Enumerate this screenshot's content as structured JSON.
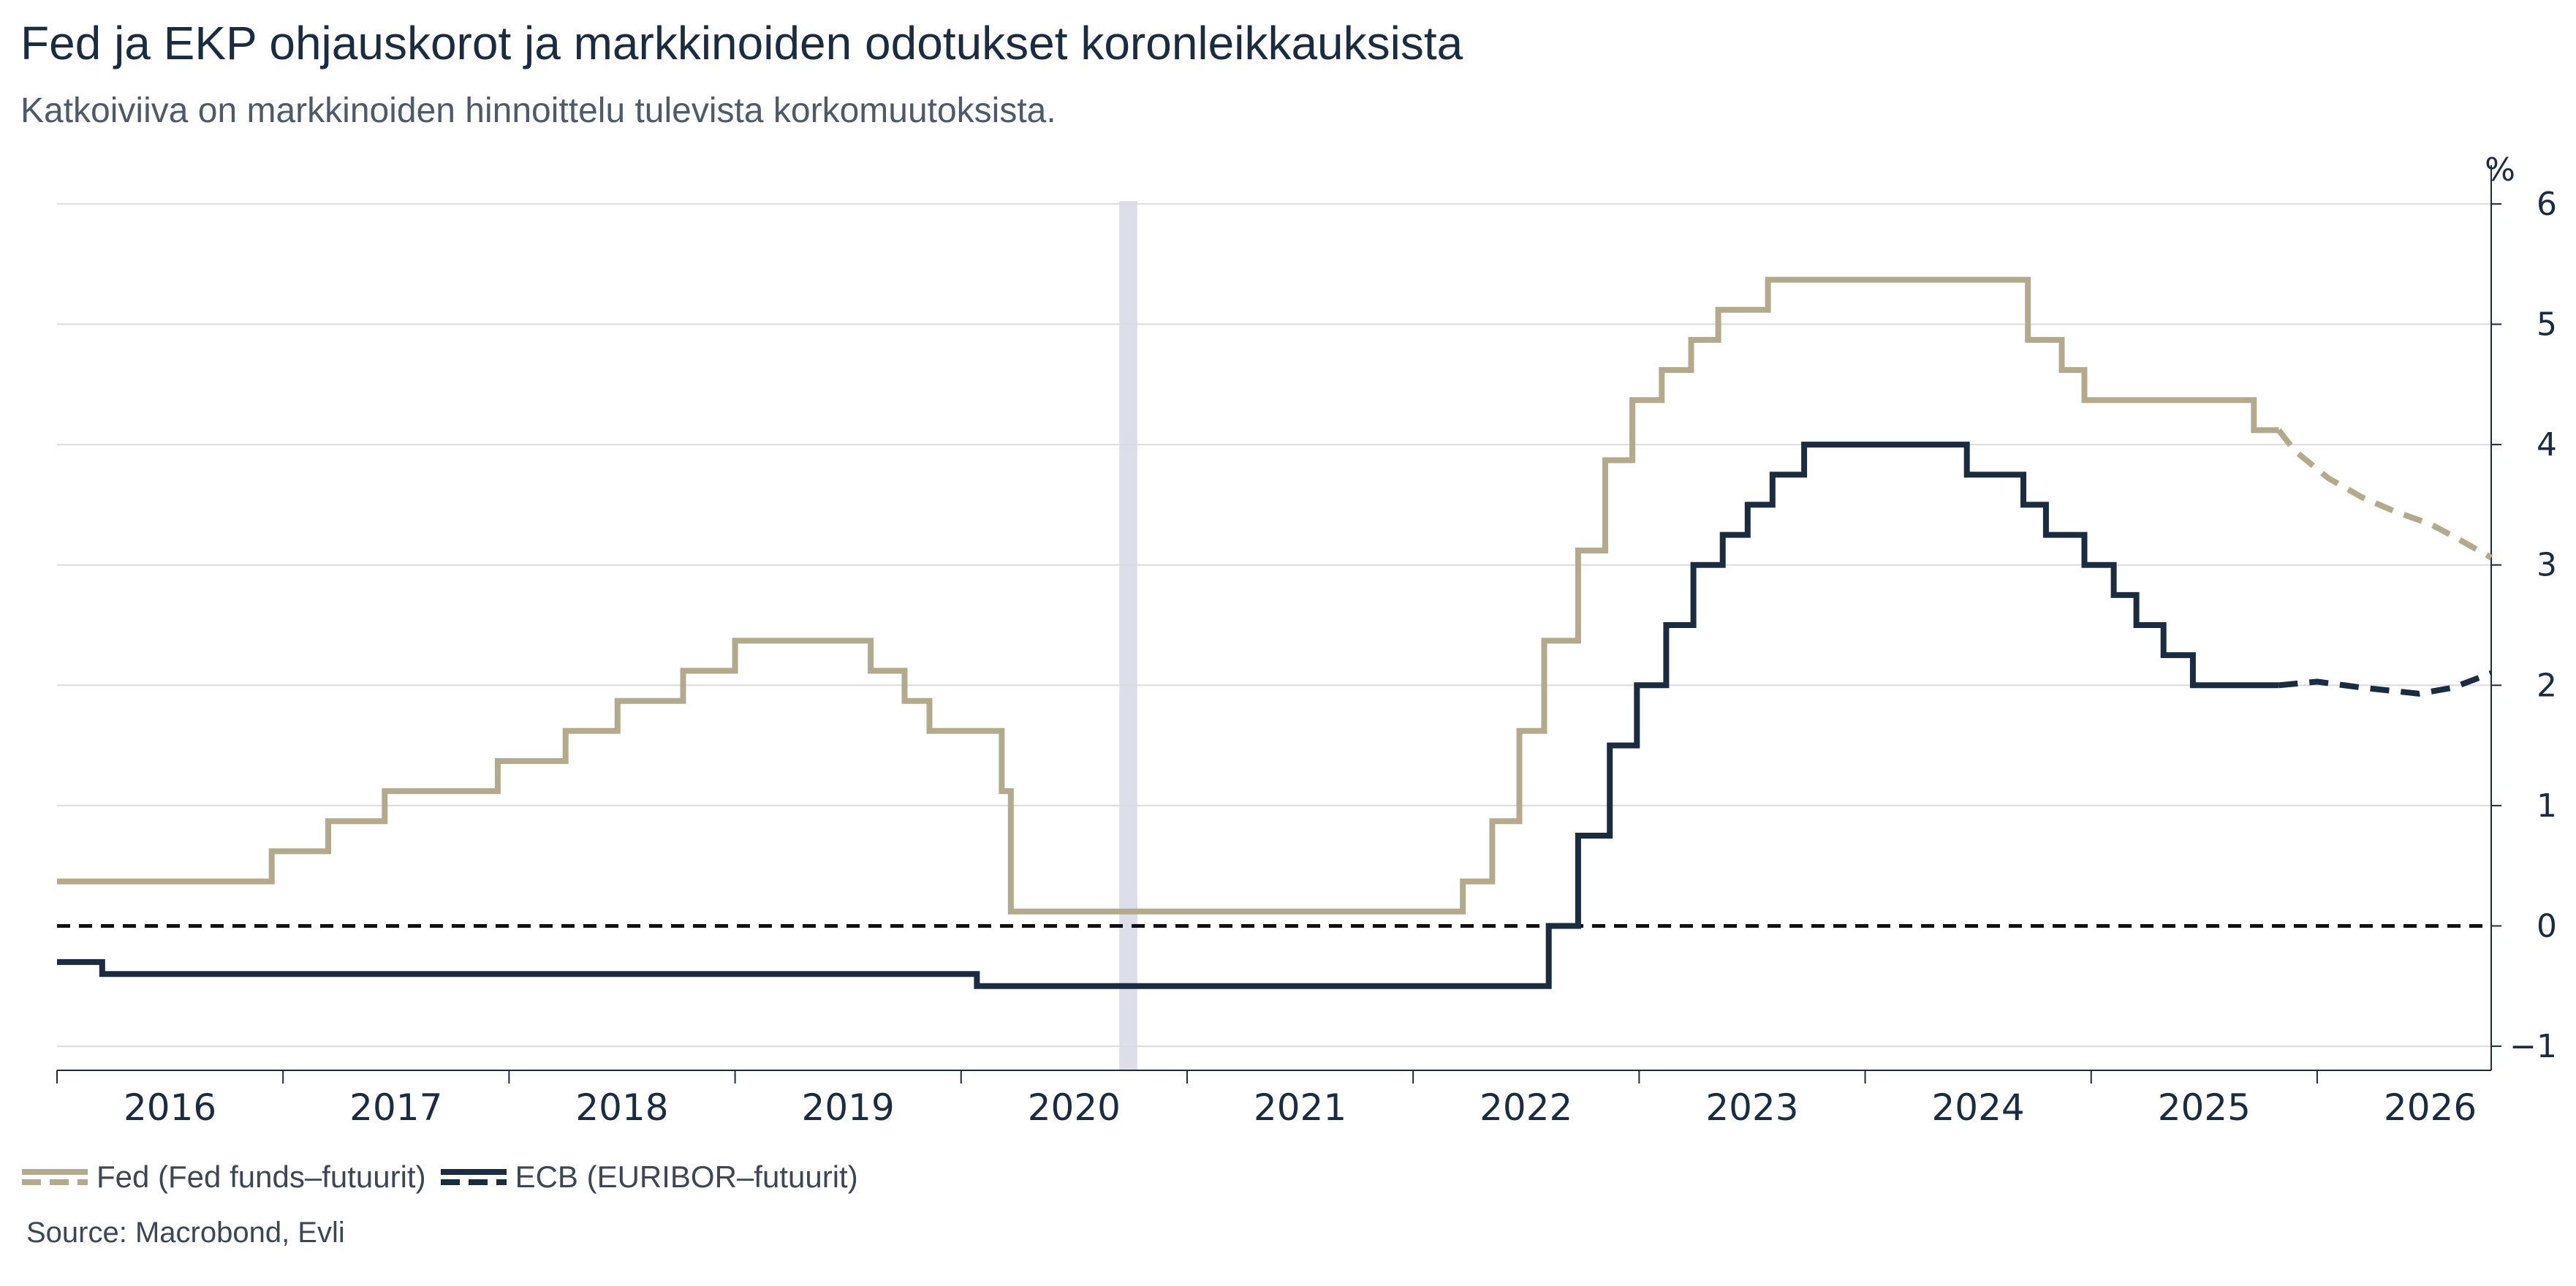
{
  "title": "Fed ja EKP ohjauskorot ja markkinoiden odotukset koronleikkauksista",
  "subtitle": "Katkoiviiva on markkinoiden hinnoittelu tulevista korkomuutoksista.",
  "source": "Source: Macrobond, Evli",
  "chart_data": {
    "type": "line",
    "title": "Fed ja EKP ohjauskorot ja markkinoiden odotukset koronleikkauksista",
    "subtitle": "Katkoiviiva on markkinoiden hinnoittelu tulevista korkomuutoksista.",
    "ylabel": "%",
    "ylim": [
      -1.2,
      6.2
    ],
    "xlim": [
      2015.5,
      2026.27
    ],
    "y_ticks": [
      -1,
      0,
      1,
      2,
      3,
      4,
      5,
      6
    ],
    "y_tick_labels": [
      "−1",
      "0",
      "1",
      "2",
      "3",
      "4",
      "5",
      "6"
    ],
    "x_ticks": [
      2016,
      2017,
      2018,
      2019,
      2020,
      2021,
      2022,
      2023,
      2024,
      2025,
      2026
    ],
    "x_tick_labels": [
      "2016",
      "2017",
      "2018",
      "2019",
      "2020",
      "2021",
      "2022",
      "2023",
      "2024",
      "2025",
      "2026"
    ],
    "grid": true,
    "y_axis_position": "right",
    "zero_line": "dashed",
    "shaded_period": {
      "start": 2020.2,
      "end": 2020.28
    },
    "legend_position": "bottom-left",
    "colors": {
      "fed": "#b3aa8e",
      "ecb": "#1b2b40",
      "shade": "#dcdfe9",
      "grid": "#d9dbe0"
    },
    "series": [
      {
        "name": "Fed (Fed funds–futuurit)",
        "legend_label": "Fed (Fed funds–futuurit)",
        "color": "#b3aa8e",
        "actual": [
          [
            2015.5,
            0.37
          ],
          [
            2016.45,
            0.37
          ],
          [
            2016.45,
            0.62
          ],
          [
            2016.7,
            0.62
          ],
          [
            2016.7,
            0.87
          ],
          [
            2016.95,
            0.87
          ],
          [
            2016.95,
            1.12
          ],
          [
            2017.45,
            1.12
          ],
          [
            2017.45,
            1.37
          ],
          [
            2017.75,
            1.37
          ],
          [
            2017.75,
            1.62
          ],
          [
            2017.98,
            1.62
          ],
          [
            2017.98,
            1.87
          ],
          [
            2018.27,
            1.87
          ],
          [
            2018.27,
            2.12
          ],
          [
            2018.5,
            2.12
          ],
          [
            2018.5,
            2.37
          ],
          [
            2019.1,
            2.37
          ],
          [
            2019.1,
            2.12
          ],
          [
            2019.25,
            2.12
          ],
          [
            2019.25,
            1.87
          ],
          [
            2019.36,
            1.87
          ],
          [
            2019.36,
            1.62
          ],
          [
            2019.68,
            1.62
          ],
          [
            2019.68,
            1.12
          ],
          [
            2019.72,
            1.12
          ],
          [
            2019.72,
            0.12
          ],
          [
            2021.72,
            0.12
          ],
          [
            2021.72,
            0.37
          ],
          [
            2021.85,
            0.37
          ],
          [
            2021.85,
            0.87
          ],
          [
            2021.97,
            0.87
          ],
          [
            2021.97,
            1.62
          ],
          [
            2022.08,
            1.62
          ],
          [
            2022.08,
            2.37
          ],
          [
            2022.23,
            2.37
          ],
          [
            2022.23,
            3.12
          ],
          [
            2022.35,
            3.12
          ],
          [
            2022.35,
            3.87
          ],
          [
            2022.47,
            3.87
          ],
          [
            2022.47,
            4.37
          ],
          [
            2022.6,
            4.37
          ],
          [
            2022.6,
            4.62
          ],
          [
            2022.73,
            4.62
          ],
          [
            2022.73,
            4.87
          ],
          [
            2022.85,
            4.87
          ],
          [
            2022.85,
            5.12
          ],
          [
            2023.07,
            5.12
          ],
          [
            2023.07,
            5.37
          ],
          [
            2024.22,
            5.37
          ],
          [
            2024.22,
            4.87
          ],
          [
            2024.37,
            4.87
          ],
          [
            2024.37,
            4.62
          ],
          [
            2024.47,
            4.62
          ],
          [
            2024.47,
            4.37
          ],
          [
            2024.72,
            4.37
          ],
          [
            2025.22,
            4.37
          ],
          [
            2025.22,
            4.12
          ],
          [
            2025.33,
            4.12
          ]
        ],
        "expected": [
          [
            2025.33,
            4.12
          ],
          [
            2025.4,
            3.95
          ],
          [
            2025.55,
            3.72
          ],
          [
            2025.7,
            3.56
          ],
          [
            2025.85,
            3.44
          ],
          [
            2026.0,
            3.34
          ],
          [
            2026.12,
            3.22
          ],
          [
            2026.27,
            3.06
          ]
        ]
      },
      {
        "name": "ECB (EURIBOR–futuurit)",
        "legend_label": "ECB (EURIBOR–futuurit)",
        "color": "#1b2b40",
        "actual": [
          [
            2015.5,
            -0.3
          ],
          [
            2015.7,
            -0.3
          ],
          [
            2015.7,
            -0.4
          ],
          [
            2019.57,
            -0.4
          ],
          [
            2019.57,
            -0.5
          ],
          [
            2022.1,
            -0.5
          ],
          [
            2022.1,
            0.0
          ],
          [
            2022.23,
            0.0
          ],
          [
            2022.23,
            0.75
          ],
          [
            2022.37,
            0.75
          ],
          [
            2022.37,
            1.5
          ],
          [
            2022.49,
            1.5
          ],
          [
            2022.49,
            2.0
          ],
          [
            2022.62,
            2.0
          ],
          [
            2022.62,
            2.5
          ],
          [
            2022.74,
            2.5
          ],
          [
            2022.74,
            3.0
          ],
          [
            2022.87,
            3.0
          ],
          [
            2022.87,
            3.25
          ],
          [
            2022.98,
            3.25
          ],
          [
            2022.98,
            3.5
          ],
          [
            2023.09,
            3.5
          ],
          [
            2023.09,
            3.75
          ],
          [
            2023.23,
            3.75
          ],
          [
            2023.23,
            4.0
          ],
          [
            2023.95,
            4.0
          ],
          [
            2023.95,
            3.75
          ],
          [
            2024.2,
            3.75
          ],
          [
            2024.2,
            3.5
          ],
          [
            2024.3,
            3.5
          ],
          [
            2024.3,
            3.25
          ],
          [
            2024.47,
            3.25
          ],
          [
            2024.47,
            3.0
          ],
          [
            2024.6,
            3.0
          ],
          [
            2024.6,
            2.75
          ],
          [
            2024.7,
            2.75
          ],
          [
            2024.7,
            2.5
          ],
          [
            2024.82,
            2.5
          ],
          [
            2024.82,
            2.25
          ],
          [
            2024.95,
            2.25
          ],
          [
            2024.95,
            2.0
          ],
          [
            2025.33,
            2.0
          ]
        ],
        "expected": [
          [
            2025.33,
            2.0
          ],
          [
            2025.5,
            2.03
          ],
          [
            2025.7,
            1.98
          ],
          [
            2025.95,
            1.93
          ],
          [
            2026.1,
            1.98
          ],
          [
            2026.27,
            2.1
          ]
        ]
      }
    ]
  }
}
